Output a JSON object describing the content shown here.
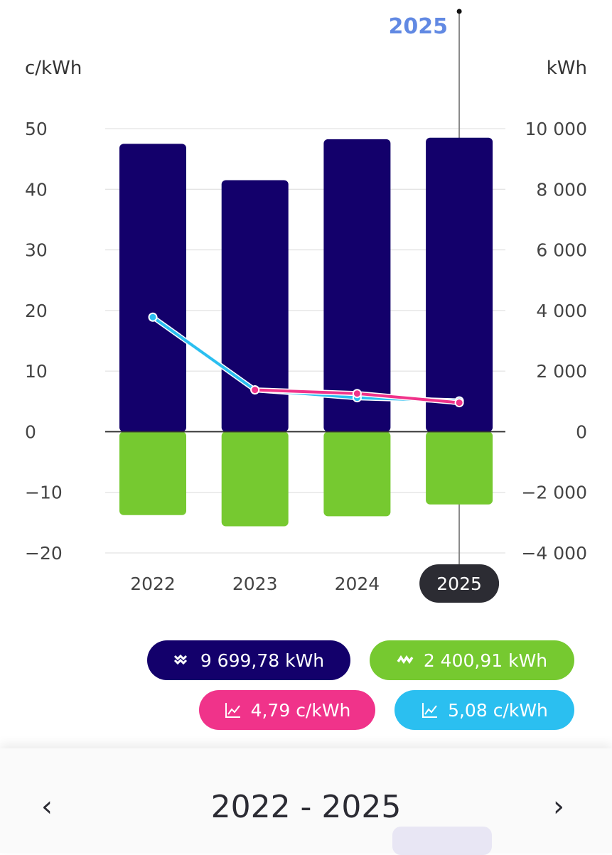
{
  "chart_data": {
    "type": "bar",
    "categories": [
      "2022",
      "2023",
      "2024",
      "2025"
    ],
    "left_axis": {
      "label": "c/kWh",
      "ylim": [
        -20,
        50
      ],
      "ticks": [
        "50",
        "40",
        "30",
        "20",
        "10",
        "0",
        "−10",
        "−20"
      ]
    },
    "right_axis": {
      "label": "kWh",
      "ylim": [
        -4000,
        10000
      ],
      "ticks": [
        "10 000",
        "8 000",
        "6 000",
        "4 000",
        "2 000",
        "0",
        "−2 000",
        "−4 000"
      ]
    },
    "grid": true,
    "series": [
      {
        "kind": "bar",
        "axis": "right",
        "color": "#13006b",
        "values": [
          9500,
          8300,
          9650,
          9699.78
        ]
      },
      {
        "kind": "bar",
        "axis": "right",
        "color": "#76c930",
        "values": [
          -2750,
          -3120,
          -2790,
          -2400.91
        ]
      },
      {
        "kind": "line",
        "axis": "left",
        "color": "#2bbff0",
        "values": [
          18.9,
          6.9,
          5.6,
          5.08
        ]
      },
      {
        "kind": "line",
        "axis": "left",
        "color": "#f0338a",
        "values": [
          null,
          6.9,
          6.3,
          4.79
        ]
      }
    ],
    "selected_category": "2025",
    "tooltip_label": "2025"
  },
  "legend": [
    {
      "icon": "consumption-icon",
      "text": "9 699,78 kWh",
      "color": "#13006b"
    },
    {
      "icon": "production-icon",
      "text": "2 400,91 kWh",
      "color": "#76c930"
    },
    {
      "icon": "line-chart-icon",
      "text": "4,79 c/kWh",
      "color": "#f0338a"
    },
    {
      "icon": "line-chart-icon",
      "text": "5,08 c/kWh",
      "color": "#2bbff0"
    }
  ],
  "period": {
    "label": "2022 - 2025",
    "prev": "‹",
    "next": "›"
  }
}
